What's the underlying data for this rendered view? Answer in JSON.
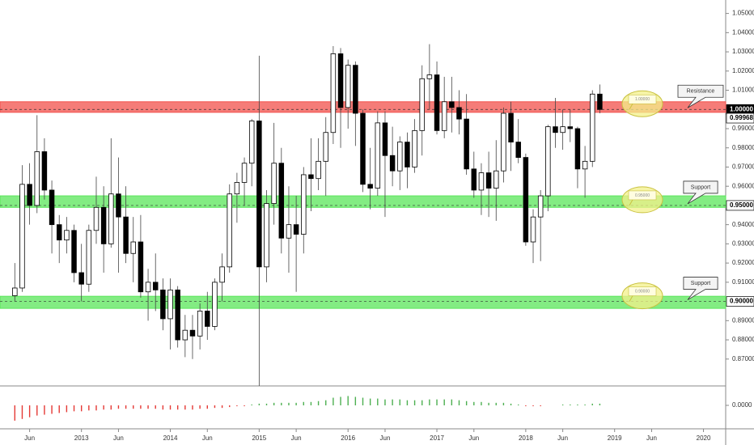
{
  "chart_data": {
    "type": "candlestick",
    "x": [
      "2012-04",
      "2012-05",
      "2012-06",
      "2012-07",
      "2012-08",
      "2012-09",
      "2012-10",
      "2012-11",
      "2012-12",
      "2013-01",
      "2013-02",
      "2013-03",
      "2013-04",
      "2013-05",
      "2013-06",
      "2013-07",
      "2013-08",
      "2013-09",
      "2013-10",
      "2013-11",
      "2013-12",
      "2014-01",
      "2014-02",
      "2014-03",
      "2014-04",
      "2014-05",
      "2014-06",
      "2014-07",
      "2014-08",
      "2014-09",
      "2014-10",
      "2014-11",
      "2014-12",
      "2015-01",
      "2015-02",
      "2015-03",
      "2015-04",
      "2015-05",
      "2015-06",
      "2015-07",
      "2015-08",
      "2015-09",
      "2015-10",
      "2015-11",
      "2015-12",
      "2016-01",
      "2016-02",
      "2016-03",
      "2016-04",
      "2016-05",
      "2016-06",
      "2016-07",
      "2016-08",
      "2016-09",
      "2016-10",
      "2016-11",
      "2016-12",
      "2017-01",
      "2017-02",
      "2017-03",
      "2017-04",
      "2017-05",
      "2017-06",
      "2017-07",
      "2017-08",
      "2017-09",
      "2017-10",
      "2017-11",
      "2017-12",
      "2018-01",
      "2018-02",
      "2018-03",
      "2018-04",
      "2018-05",
      "2018-06",
      "2018-07",
      "2018-08",
      "2018-09",
      "2018-10",
      "2018-11"
    ],
    "open": [
      0.903,
      0.907,
      0.961,
      0.95,
      0.978,
      0.958,
      0.94,
      0.932,
      0.937,
      0.915,
      0.909,
      0.937,
      0.949,
      0.93,
      0.956,
      0.944,
      0.925,
      0.931,
      0.905,
      0.91,
      0.906,
      0.891,
      0.906,
      0.88,
      0.885,
      0.882,
      0.895,
      0.887,
      0.91,
      0.918,
      0.956,
      0.962,
      0.972,
      0.994,
      0.918,
      0.951,
      0.972,
      0.933,
      0.94,
      0.935,
      0.966,
      0.964,
      0.973,
      0.988,
      1.029,
      1.001,
      1.023,
      0.998,
      0.961,
      0.959,
      0.993,
      0.976,
      0.968,
      0.983,
      0.97,
      0.989,
      1.016,
      1.018,
      0.989,
      1.004,
      1.001,
      0.995,
      0.969,
      0.958,
      0.967,
      0.959,
      0.968,
      0.998,
      0.983,
      0.975,
      0.931,
      0.944,
      0.955,
      0.991,
      0.988,
      0.991,
      0.99,
      0.969,
      0.973,
      1.008
    ],
    "high": [
      0.92,
      0.971,
      0.972,
      0.997,
      0.985,
      0.963,
      0.945,
      0.944,
      0.94,
      0.93,
      0.94,
      0.965,
      0.96,
      0.985,
      0.975,
      0.96,
      0.944,
      0.945,
      0.917,
      0.925,
      0.912,
      0.912,
      0.908,
      0.893,
      0.893,
      0.899,
      0.905,
      0.912,
      0.925,
      0.961,
      0.967,
      0.975,
      0.995,
      1.028,
      0.958,
      0.993,
      0.98,
      0.96,
      0.955,
      0.97,
      0.985,
      0.985,
      0.996,
      1.033,
      1.032,
      1.026,
      1.025,
      1.0,
      0.98,
      0.999,
      0.999,
      0.991,
      0.986,
      0.988,
      0.995,
      1.023,
      1.034,
      1.025,
      1.017,
      1.017,
      1.01,
      1.008,
      0.978,
      0.972,
      0.978,
      0.984,
      1.001,
      1.004,
      0.995,
      0.977,
      0.948,
      0.958,
      0.992,
      1.006,
      1.0,
      1.0,
      0.991,
      0.981,
      1.01,
      1.013
    ],
    "low": [
      0.9,
      0.905,
      0.94,
      0.946,
      0.953,
      0.925,
      0.92,
      0.925,
      0.91,
      0.9,
      0.905,
      0.93,
      0.915,
      0.928,
      0.915,
      0.92,
      0.91,
      0.902,
      0.89,
      0.895,
      0.885,
      0.875,
      0.876,
      0.871,
      0.87,
      0.875,
      0.88,
      0.885,
      0.9,
      0.915,
      0.941,
      0.95,
      0.96,
      0.856,
      0.91,
      0.94,
      0.925,
      0.915,
      0.905,
      0.925,
      0.947,
      0.958,
      0.955,
      0.982,
      0.98,
      0.99,
      0.981,
      0.957,
      0.948,
      0.955,
      0.944,
      0.96,
      0.958,
      0.959,
      0.967,
      0.976,
      1.0,
      0.987,
      0.985,
      0.988,
      0.987,
      0.966,
      0.954,
      0.945,
      0.944,
      0.942,
      0.962,
      0.968,
      0.972,
      0.929,
      0.92,
      0.921,
      0.947,
      0.98,
      0.979,
      0.983,
      0.959,
      0.954,
      0.97,
      0.998
    ],
    "close": [
      0.907,
      0.961,
      0.95,
      0.978,
      0.958,
      0.94,
      0.932,
      0.937,
      0.915,
      0.909,
      0.937,
      0.949,
      0.93,
      0.956,
      0.944,
      0.925,
      0.931,
      0.905,
      0.91,
      0.906,
      0.891,
      0.906,
      0.88,
      0.885,
      0.882,
      0.895,
      0.887,
      0.91,
      0.918,
      0.956,
      0.962,
      0.972,
      0.994,
      0.918,
      0.951,
      0.972,
      0.933,
      0.94,
      0.935,
      0.966,
      0.964,
      0.973,
      0.988,
      1.029,
      1.001,
      1.023,
      0.998,
      0.961,
      0.959,
      0.993,
      0.976,
      0.968,
      0.983,
      0.97,
      0.989,
      1.016,
      1.018,
      0.989,
      1.004,
      1.001,
      0.995,
      0.969,
      0.958,
      0.967,
      0.959,
      0.968,
      0.998,
      0.983,
      0.975,
      0.931,
      0.944,
      0.955,
      0.991,
      0.988,
      0.991,
      0.99,
      0.969,
      0.973,
      1.008,
      1.0
    ],
    "up_color": "#ffffff",
    "down_color": "#000000",
    "xlim": [
      "2012-02",
      "2020-04"
    ],
    "xticks": [
      {
        "value": "2012-06",
        "label": "Jun"
      },
      {
        "value": "2013-01",
        "label": "2013"
      },
      {
        "value": "2013-06",
        "label": "Jun"
      },
      {
        "value": "2014-01",
        "label": "2014"
      },
      {
        "value": "2014-06",
        "label": "Jun"
      },
      {
        "value": "2015-01",
        "label": "2015"
      },
      {
        "value": "2015-06",
        "label": "Jun"
      },
      {
        "value": "2016-01",
        "label": "2016"
      },
      {
        "value": "2016-06",
        "label": "Jun"
      },
      {
        "value": "2017-01",
        "label": "2017"
      },
      {
        "value": "2017-06",
        "label": "Jun"
      },
      {
        "value": "2018-01",
        "label": "2018"
      },
      {
        "value": "2018-06",
        "label": "Jun"
      },
      {
        "value": "2019-01",
        "label": "2019"
      },
      {
        "value": "2019-06",
        "label": "Jun"
      },
      {
        "value": "2020-01",
        "label": "2020"
      }
    ],
    "ylim": [
      0.856,
      1.057
    ],
    "yticks": [
      {
        "value": 1.05,
        "label": "1.05000"
      },
      {
        "value": 1.04,
        "label": "1.04000"
      },
      {
        "value": 1.03,
        "label": "1.03000"
      },
      {
        "value": 1.02,
        "label": "1.02000"
      },
      {
        "value": 1.01,
        "label": "1.01000"
      },
      {
        "value": 0.99,
        "label": "0.99000"
      },
      {
        "value": 0.98,
        "label": "0.98000"
      },
      {
        "value": 0.97,
        "label": "0.97000"
      },
      {
        "value": 0.96,
        "label": "0.96000"
      },
      {
        "value": 0.94,
        "label": "0.94000"
      },
      {
        "value": 0.93,
        "label": "0.93000"
      },
      {
        "value": 0.92,
        "label": "0.92000"
      },
      {
        "value": 0.91,
        "label": "0.91000"
      },
      {
        "value": 0.89,
        "label": "0.89000"
      },
      {
        "value": 0.88,
        "label": "0.88000"
      },
      {
        "value": 0.87,
        "label": "0.87000"
      }
    ],
    "price_labels": [
      {
        "value": 1.0,
        "label": "1.00000",
        "style": "dark"
      },
      {
        "value": 0.99968,
        "label": "0.99968",
        "style": "light"
      },
      {
        "value": 0.95,
        "label": "0.95000",
        "style": "light"
      },
      {
        "value": 0.9,
        "label": "0.90000",
        "style": "light"
      }
    ],
    "zones": [
      {
        "low": 0.9985,
        "high": 1.004,
        "level": 1.0,
        "color": "#f2504b"
      },
      {
        "low": 0.949,
        "high": 0.955,
        "level": 0.95,
        "color": "#5ae65a"
      },
      {
        "low": 0.8964,
        "high": 0.9027,
        "level": 0.9,
        "color": "#5ae65a"
      }
    ],
    "level_notes": [
      {
        "value": 1.0,
        "label": "1.00000"
      },
      {
        "value": 0.95,
        "label": "0.95000"
      },
      {
        "value": 0.9,
        "label": "0.90000"
      }
    ],
    "callouts": [
      {
        "value": 1.0,
        "label": "Resistance"
      },
      {
        "value": 0.95,
        "label": "Support"
      },
      {
        "value": 0.9,
        "label": "Support"
      }
    ],
    "oscillator": {
      "type": "bar",
      "up_color": "#4caf50",
      "down_color": "#e53935",
      "ylim": [
        -0.02,
        0.02
      ],
      "yticks": [
        {
          "value": 0,
          "label": "0.0000"
        }
      ],
      "values": [
        -0.018,
        -0.016,
        -0.014,
        -0.012,
        -0.011,
        -0.01,
        -0.009,
        -0.008,
        -0.007,
        -0.007,
        -0.006,
        -0.006,
        -0.005,
        -0.005,
        -0.004,
        -0.004,
        -0.004,
        -0.004,
        -0.004,
        -0.004,
        -0.005,
        -0.005,
        -0.005,
        -0.005,
        -0.005,
        -0.004,
        -0.004,
        -0.003,
        -0.003,
        -0.002,
        -0.001,
        -0.001,
        0.001,
        0.002,
        0.002,
        0.003,
        0.003,
        0.003,
        0.003,
        0.004,
        0.004,
        0.005,
        0.006,
        0.009,
        0.01,
        0.011,
        0.01,
        0.009,
        0.008,
        0.008,
        0.007,
        0.007,
        0.007,
        0.006,
        0.006,
        0.006,
        0.007,
        0.007,
        0.007,
        0.007,
        0.006,
        0.005,
        0.004,
        0.004,
        0.003,
        0.003,
        0.003,
        0.002,
        0.001,
        -0.001,
        -0.001,
        -0.001,
        0.0,
        0.0,
        0.001,
        0.001,
        0.001,
        0.001,
        0.002,
        0.002
      ]
    }
  }
}
